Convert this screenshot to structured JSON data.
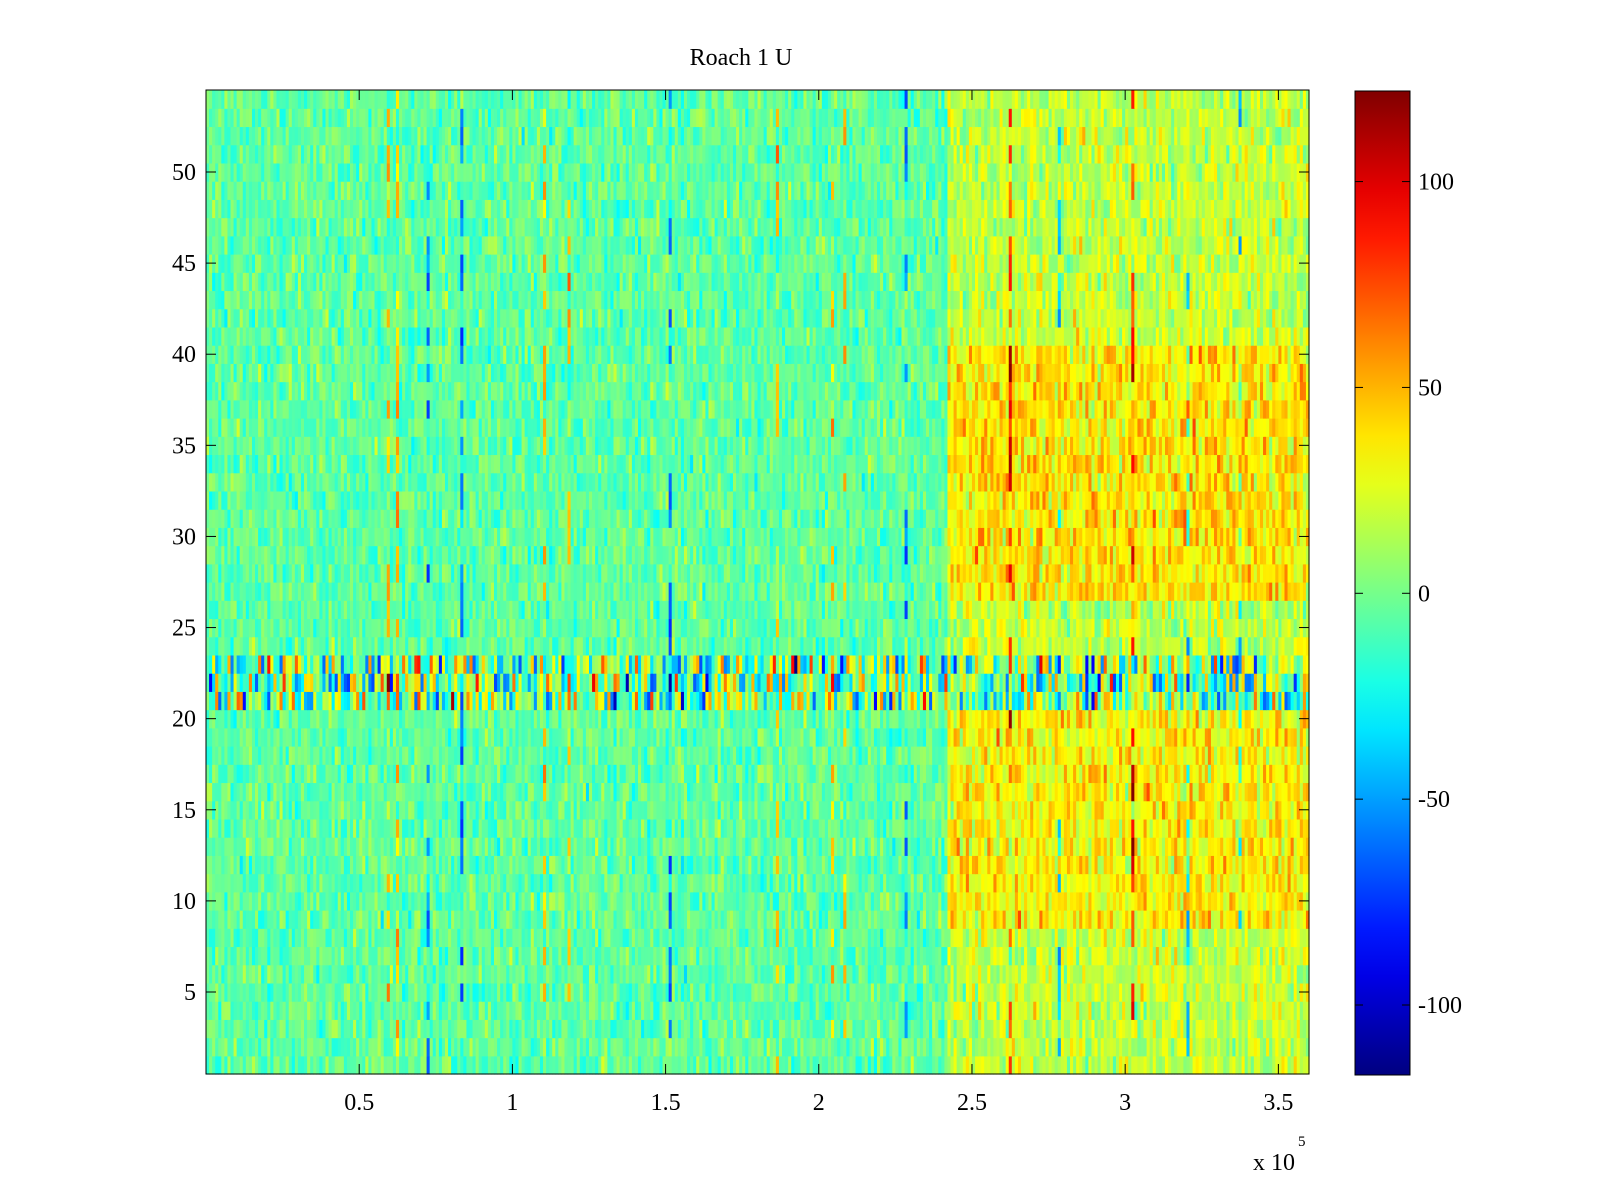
{
  "chart_data": {
    "type": "heatmap",
    "title": "Roach 1 U",
    "xlabel": "",
    "ylabel": "",
    "x_multiplier_label": "x 10",
    "x_multiplier_exponent": "5",
    "xlim": [
      0,
      360000
    ],
    "ylim": [
      0.5,
      54.5
    ],
    "x_ticks": [
      {
        "value": 50000,
        "label": "0.5"
      },
      {
        "value": 100000,
        "label": "1"
      },
      {
        "value": 150000,
        "label": "1.5"
      },
      {
        "value": 200000,
        "label": "2"
      },
      {
        "value": 250000,
        "label": "2.5"
      },
      {
        "value": 300000,
        "label": "3"
      },
      {
        "value": 350000,
        "label": "3.5"
      }
    ],
    "y_ticks": [
      {
        "value": 5,
        "label": "5"
      },
      {
        "value": 10,
        "label": "10"
      },
      {
        "value": 15,
        "label": "15"
      },
      {
        "value": 20,
        "label": "20"
      },
      {
        "value": 25,
        "label": "25"
      },
      {
        "value": 30,
        "label": "30"
      },
      {
        "value": 35,
        "label": "35"
      },
      {
        "value": 40,
        "label": "40"
      },
      {
        "value": 45,
        "label": "45"
      },
      {
        "value": 50,
        "label": "50"
      }
    ],
    "rows": 54,
    "colormap": "jet",
    "colorbar": {
      "range": [
        -117,
        122
      ],
      "ticks": [
        {
          "value": -100,
          "label": "-100"
        },
        {
          "value": -50,
          "label": "-50"
        },
        {
          "value": 0,
          "label": "0"
        },
        {
          "value": 50,
          "label": "50"
        },
        {
          "value": 100,
          "label": "100"
        }
      ]
    },
    "regions": [
      {
        "x_range": [
          0,
          242000
        ],
        "y_range": [
          1,
          54
        ],
        "mean_value": -5,
        "noise": 10,
        "description": "baseline"
      },
      {
        "x_range": [
          242000,
          360000
        ],
        "y_range": [
          1,
          54
        ],
        "mean_value": 18,
        "noise": 12,
        "description": "elevated"
      },
      {
        "x_range": [
          242000,
          360000
        ],
        "y_range": [
          9,
          20
        ],
        "mean_value": 35,
        "noise": 14,
        "description": "high band"
      },
      {
        "x_range": [
          242000,
          360000
        ],
        "y_range": [
          27,
          40
        ],
        "mean_value": 38,
        "noise": 14,
        "description": "high band"
      },
      {
        "x_range": [
          0,
          360000
        ],
        "y_range": [
          21,
          23
        ],
        "mean_value": 0,
        "noise": 40,
        "description": "high variance band"
      }
    ]
  }
}
